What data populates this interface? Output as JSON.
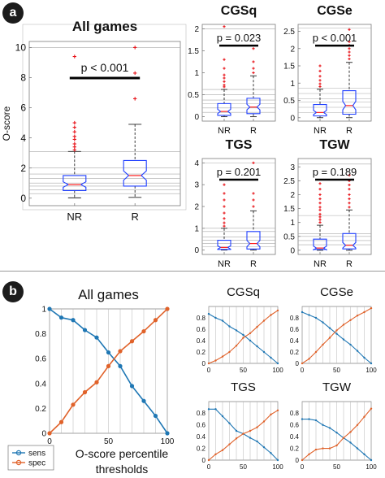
{
  "panel_labels": [
    "a",
    "b"
  ],
  "colors": {
    "box": "#1f3fff",
    "median": "#ff2020",
    "outlier": "#e8141a",
    "whisker": "#222222",
    "sens": "#1f77b4",
    "spec": "#e0622a",
    "ref_line": "#a8a8a8",
    "axis": "#7a7a7a"
  },
  "chart_data": [
    {
      "type": "box",
      "title": "All games",
      "ylabel": "O-score",
      "categories": [
        "NR",
        "R"
      ],
      "ylim": [
        -0.5,
        10.4
      ],
      "yticks": [
        0,
        2,
        4,
        6,
        8,
        10
      ],
      "boxes": [
        {
          "whisker_low": 0.02,
          "q1": 0.5,
          "median": 0.9,
          "q3": 1.5,
          "whisker_high": 3.1,
          "outliers": [
            3.2,
            3.4,
            3.6,
            3.9,
            4.1,
            4.4,
            4.7,
            5.0,
            9.4
          ]
        },
        {
          "whisker_low": 0.05,
          "q1": 0.8,
          "median": 1.5,
          "q3": 2.5,
          "whisker_high": 4.9,
          "outliers": [
            6.6,
            8.3,
            10.0
          ]
        }
      ],
      "ref_lines": [
        0.3,
        0.55,
        0.8,
        1.0,
        1.3,
        1.6,
        2.0,
        3.1,
        10.0
      ],
      "annotation": "p < 0.001"
    },
    {
      "type": "box",
      "title": "CGSq",
      "categories": [
        "NR",
        "R"
      ],
      "ylim": [
        -0.1,
        2.1
      ],
      "yticks": [
        0,
        0.5,
        1,
        1.5,
        2
      ],
      "boxes": [
        {
          "whisker_low": 0.0,
          "q1": 0.03,
          "median": 0.12,
          "q3": 0.3,
          "whisker_high": 0.62,
          "outliers": [
            0.68,
            0.72,
            0.8,
            0.88,
            0.95,
            1.1,
            1.3,
            2.05
          ]
        },
        {
          "whisker_low": 0.0,
          "q1": 0.07,
          "median": 0.22,
          "q3": 0.42,
          "whisker_high": 0.93,
          "outliers": [
            1.0,
            1.1,
            1.25,
            1.55
          ]
        }
      ],
      "ref_lines": [
        0.1,
        0.2,
        0.3,
        0.38,
        0.5,
        0.62,
        2.0
      ],
      "annotation": "p = 0.023"
    },
    {
      "type": "box",
      "title": "CGSe",
      "categories": [
        "NR",
        "R"
      ],
      "ylim": [
        -0.1,
        2.7
      ],
      "yticks": [
        0,
        0.5,
        1,
        1.5,
        2,
        2.5
      ],
      "boxes": [
        {
          "whisker_low": 0.0,
          "q1": 0.05,
          "median": 0.15,
          "q3": 0.38,
          "whisker_high": 0.82,
          "outliers": [
            0.9,
            0.98,
            1.08,
            1.2,
            1.35,
            1.5
          ]
        },
        {
          "whisker_low": 0.0,
          "q1": 0.1,
          "median": 0.35,
          "q3": 0.78,
          "whisker_high": 1.6,
          "outliers": [
            1.7,
            1.8,
            1.9,
            2.0,
            2.1,
            2.2,
            2.55
          ]
        }
      ],
      "ref_lines": [
        0.15,
        0.3,
        0.45,
        0.55,
        0.7,
        0.85,
        2.6
      ],
      "annotation": "p < 0.001"
    },
    {
      "type": "box",
      "title": "TGS",
      "categories": [
        "NR",
        "R"
      ],
      "ylim": [
        -0.2,
        4.2
      ],
      "yticks": [
        0,
        1,
        2,
        3,
        4
      ],
      "boxes": [
        {
          "whisker_low": 0.0,
          "q1": 0.03,
          "median": 0.12,
          "q3": 0.45,
          "whisker_high": 1.0,
          "outliers": [
            1.1,
            1.25,
            1.45,
            1.7,
            2.0,
            2.3,
            2.6,
            3.0
          ]
        },
        {
          "whisker_low": 0.0,
          "q1": 0.05,
          "median": 0.3,
          "q3": 0.85,
          "whisker_high": 1.8,
          "outliers": [
            2.0,
            2.3,
            2.6,
            4.0
          ]
        }
      ],
      "ref_lines": [
        0.15,
        0.3,
        0.45,
        0.6,
        0.85,
        1.0,
        4.0
      ],
      "annotation": "p = 0.201"
    },
    {
      "type": "box",
      "title": "TGW",
      "categories": [
        "NR",
        "R"
      ],
      "ylim": [
        -0.15,
        3.3
      ],
      "yticks": [
        0,
        0.5,
        1,
        1.5,
        2,
        2.5,
        3
      ],
      "boxes": [
        {
          "whisker_low": 0.0,
          "q1": 0.03,
          "median": 0.08,
          "q3": 0.4,
          "whisker_high": 0.9,
          "outliers": [
            1.0,
            1.1,
            1.2,
            1.3,
            1.45,
            1.55,
            1.7,
            1.85,
            2.0,
            2.2,
            2.4
          ]
        },
        {
          "whisker_low": 0.0,
          "q1": 0.05,
          "median": 0.18,
          "q3": 0.6,
          "whisker_high": 1.45,
          "outliers": [
            1.55,
            1.7,
            1.85,
            2.0,
            2.2,
            2.35,
            2.5,
            2.7
          ]
        }
      ],
      "ref_lines": [
        0.2,
        0.35,
        0.5,
        0.6,
        1.25,
        3.1
      ],
      "annotation": "p = 0.189"
    },
    {
      "type": "line",
      "title": "All games",
      "x": [
        0,
        10,
        20,
        30,
        40,
        50,
        60,
        70,
        80,
        90,
        100
      ],
      "xlim": [
        0,
        100
      ],
      "ylim": [
        0,
        1
      ],
      "xticks": [
        0,
        50,
        100
      ],
      "yticks": [
        0,
        0.2,
        0.4,
        0.6,
        0.8,
        1
      ],
      "series": [
        {
          "name": "sens",
          "values": [
            1.0,
            0.93,
            0.91,
            0.83,
            0.77,
            0.65,
            0.54,
            0.38,
            0.26,
            0.14,
            0.0
          ]
        },
        {
          "name": "spec",
          "values": [
            0.0,
            0.09,
            0.23,
            0.33,
            0.41,
            0.54,
            0.66,
            0.74,
            0.82,
            0.91,
            1.0
          ]
        }
      ],
      "legend": "bottom-left",
      "xlabel": "O-score percentile thresholds"
    },
    {
      "type": "line",
      "title": "CGSq",
      "x": [
        0,
        10,
        20,
        30,
        40,
        50,
        60,
        70,
        80,
        90,
        100
      ],
      "xlim": [
        0,
        100
      ],
      "ylim": [
        0,
        1
      ],
      "xticks": [
        0,
        50,
        100
      ],
      "yticks": [
        0,
        0.2,
        0.4,
        0.6,
        0.8
      ],
      "series": [
        {
          "name": "sens",
          "values": [
            0.87,
            0.8,
            0.75,
            0.65,
            0.58,
            0.5,
            0.4,
            0.3,
            0.2,
            0.1,
            0.0
          ]
        },
        {
          "name": "spec",
          "values": [
            0.0,
            0.05,
            0.12,
            0.2,
            0.31,
            0.45,
            0.53,
            0.64,
            0.75,
            0.85,
            0.93
          ]
        }
      ]
    },
    {
      "type": "line",
      "title": "CGSe",
      "x": [
        0,
        10,
        20,
        30,
        40,
        50,
        60,
        70,
        80,
        90,
        100
      ],
      "xlim": [
        0,
        100
      ],
      "ylim": [
        0,
        1
      ],
      "xticks": [
        0,
        50,
        100
      ],
      "yticks": [
        0,
        0.2,
        0.4,
        0.6,
        0.8
      ],
      "series": [
        {
          "name": "sens",
          "values": [
            0.9,
            0.85,
            0.8,
            0.72,
            0.62,
            0.52,
            0.42,
            0.33,
            0.22,
            0.1,
            0.0
          ]
        },
        {
          "name": "spec",
          "values": [
            0.0,
            0.08,
            0.2,
            0.33,
            0.45,
            0.58,
            0.68,
            0.76,
            0.84,
            0.9,
            0.97
          ]
        }
      ]
    },
    {
      "type": "line",
      "title": "TGS",
      "x": [
        0,
        10,
        20,
        30,
        40,
        50,
        60,
        70,
        80,
        90,
        100
      ],
      "xlim": [
        0,
        100
      ],
      "ylim": [
        0,
        1
      ],
      "xticks": [
        0,
        50,
        100
      ],
      "yticks": [
        0,
        0.2,
        0.4,
        0.6,
        0.8
      ],
      "series": [
        {
          "name": "sens",
          "values": [
            0.87,
            0.87,
            0.75,
            0.63,
            0.5,
            0.45,
            0.38,
            0.32,
            0.22,
            0.12,
            0.0
          ]
        },
        {
          "name": "spec",
          "values": [
            0.0,
            0.1,
            0.17,
            0.27,
            0.37,
            0.45,
            0.5,
            0.56,
            0.66,
            0.78,
            0.85
          ]
        }
      ]
    },
    {
      "type": "line",
      "title": "TGW",
      "x": [
        0,
        10,
        20,
        30,
        40,
        50,
        60,
        70,
        80,
        90,
        100
      ],
      "xlim": [
        0,
        100
      ],
      "ylim": [
        0,
        1
      ],
      "xticks": [
        0,
        50,
        100
      ],
      "yticks": [
        0,
        0.2,
        0.4,
        0.6,
        0.8
      ],
      "series": [
        {
          "name": "sens",
          "values": [
            0.7,
            0.7,
            0.68,
            0.6,
            0.55,
            0.47,
            0.38,
            0.3,
            0.2,
            0.1,
            0.0
          ]
        },
        {
          "name": "spec",
          "values": [
            0.0,
            0.1,
            0.18,
            0.2,
            0.2,
            0.25,
            0.38,
            0.48,
            0.6,
            0.74,
            0.88
          ]
        }
      ]
    }
  ]
}
